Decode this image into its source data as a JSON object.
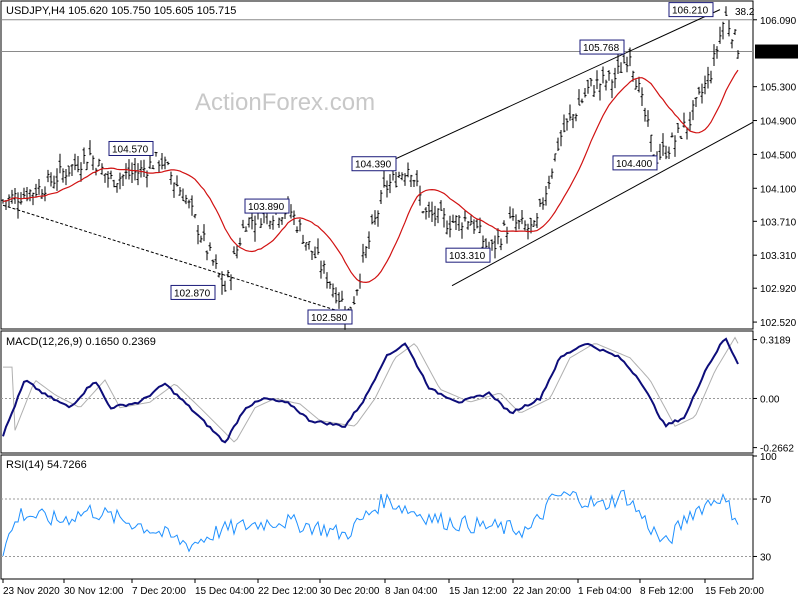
{
  "chart_data": [
    {
      "type": "ohlc",
      "title": "USDJPY,H4  105.620 105.750 105.605 105.715",
      "watermark": "ActionForex.com",
      "ylim": [
        102.45,
        106.3
      ],
      "y_ticks": [
        "106.090",
        "105.300",
        "104.900",
        "104.500",
        "104.100",
        "103.710",
        "103.310",
        "102.920",
        "102.520"
      ],
      "current_price": "105.715",
      "fib_label": "38.2",
      "annotations": [
        "104.570",
        "102.870",
        "103.890",
        "102.580",
        "104.390",
        "103.310",
        "105.768",
        "104.400",
        "106.210"
      ],
      "moving_average_color": "#d11212",
      "channel_color": "#000000"
    },
    {
      "type": "line",
      "title": "MACD(12,26,9) 0.1650 0.2369",
      "y_ticks": [
        "0.3189",
        "0.00",
        "-0.2662"
      ],
      "series": [
        {
          "name": "MACD",
          "color": "#0d0d7a"
        },
        {
          "name": "Signal",
          "color": "#b0b0b0"
        }
      ]
    },
    {
      "type": "line",
      "title": "RSI(14) 54.7266",
      "y_ticks": [
        "100",
        "70",
        "30"
      ],
      "series": [
        {
          "name": "RSI",
          "color": "#1e90ff"
        }
      ]
    }
  ],
  "x_labels": [
    "23 Nov 2020",
    "30 Nov 12:00",
    "7 Dec 20:00",
    "15 Dec 04:00",
    "22 Dec 12:00",
    "30 Dec 20:00",
    "8 Jan 04:00",
    "15 Jan 12:00",
    "22 Jan 20:00",
    "1 Feb 04:00",
    "8 Feb 12:00",
    "15 Feb 20:00"
  ]
}
